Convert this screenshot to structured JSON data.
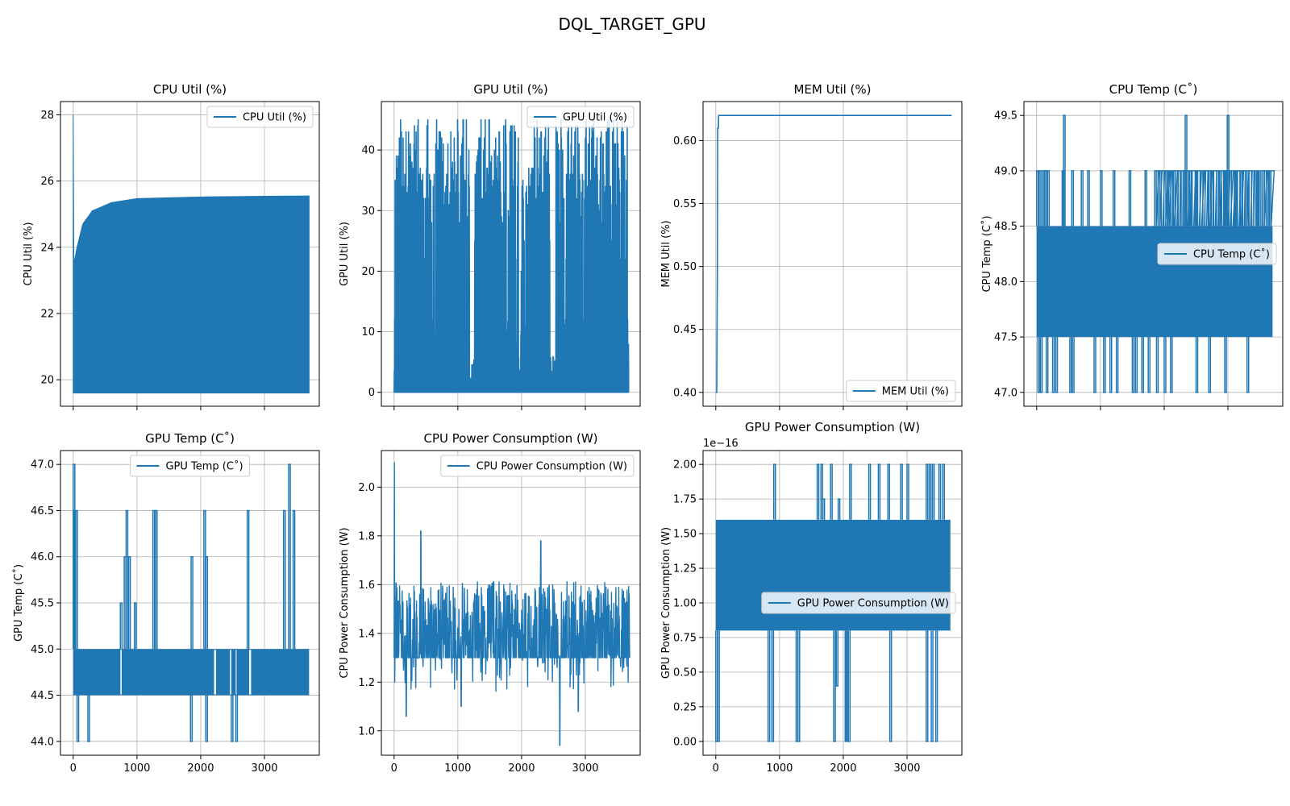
{
  "figure": {
    "suptitle": "DQL_TARGET_GPU"
  },
  "colors": {
    "series": "#1f77b4",
    "grid": "#b0b0b0",
    "axes": "#000000",
    "legend_edge": "#cccccc"
  },
  "chart_data": [
    {
      "type": "line",
      "title": "CPU Util (%)",
      "xlabel": "",
      "ylabel": "CPU Util (%)",
      "legend": "CPU Util (%)",
      "legend_loc": "upper-right",
      "xlim": [
        -200,
        3860
      ],
      "ylim": [
        19.2,
        28.4
      ],
      "xticks": [
        0,
        1000,
        2000,
        3000
      ],
      "xtick_labels_visible": false,
      "yticks": [
        20,
        22,
        24,
        26,
        28
      ],
      "ytick_labels": [
        "20",
        "22",
        "24",
        "26",
        "28"
      ],
      "grid": true,
      "shape": "band",
      "x_end": 3700,
      "low": 19.6,
      "high_points": [
        [
          0,
          28.0
        ],
        [
          10,
          23.5
        ],
        [
          60,
          24.0
        ],
        [
          150,
          24.7
        ],
        [
          300,
          25.1
        ],
        [
          600,
          25.35
        ],
        [
          1000,
          25.47
        ],
        [
          2000,
          25.52
        ],
        [
          3000,
          25.54
        ],
        [
          3700,
          25.55
        ]
      ]
    },
    {
      "type": "line",
      "title": "GPU Util (%)",
      "xlabel": "",
      "ylabel": "GPU Util (%)",
      "legend": "GPU Util (%)",
      "legend_loc": "upper-right",
      "xlim": [
        -200,
        3860
      ],
      "ylim": [
        -2.3,
        48
      ],
      "xticks": [
        0,
        1000,
        2000,
        3000
      ],
      "xtick_labels_visible": false,
      "yticks": [
        0,
        10,
        20,
        30,
        40
      ],
      "ytick_labels": [
        "0",
        "10",
        "20",
        "30",
        "40"
      ],
      "grid": true,
      "shape": "spiky",
      "x_end": 3680,
      "baseline": 0,
      "n": 560,
      "levels": [
        33,
        38,
        36,
        32,
        40,
        28,
        42,
        35,
        20,
        44,
        30,
        37,
        25,
        41,
        33,
        45,
        12,
        34,
        39,
        29,
        43,
        36,
        22,
        31
      ],
      "low_gaps": [
        [
          1180,
          1260
        ],
        [
          2440,
          2520
        ],
        [
          1950,
          1980
        ]
      ]
    },
    {
      "type": "line",
      "title": "MEM Util (%)",
      "xlabel": "",
      "ylabel": "MEM Util (%)",
      "legend": "MEM Util (%)",
      "legend_loc": "lower-right",
      "xlim": [
        -200,
        3860
      ],
      "ylim": [
        0.389,
        0.631
      ],
      "xticks": [
        0,
        1000,
        2000,
        3000
      ],
      "xtick_labels_visible": false,
      "yticks": [
        0.4,
        0.45,
        0.5,
        0.55,
        0.6
      ],
      "ytick_labels": [
        "0.40",
        "0.45",
        "0.50",
        "0.55",
        "0.60"
      ],
      "grid": true,
      "shape": "path",
      "points": [
        [
          0,
          0.4
        ],
        [
          15,
          0.4
        ],
        [
          25,
          0.5
        ],
        [
          30,
          0.61
        ],
        [
          40,
          0.61
        ],
        [
          45,
          0.62
        ],
        [
          3700,
          0.62
        ]
      ]
    },
    {
      "type": "line",
      "title": "CPU Temp (C˚)",
      "xlabel": "",
      "ylabel": "CPU Temp (C˚)",
      "legend": "CPU Temp (C˚)",
      "legend_loc": "center-right",
      "xlim": [
        -200,
        3860
      ],
      "ylim": [
        46.875,
        49.625
      ],
      "xticks": [
        0,
        1000,
        2000,
        3000
      ],
      "xtick_labels_visible": false,
      "yticks": [
        47.0,
        47.5,
        48.0,
        48.5,
        49.0,
        49.5
      ],
      "ytick_labels": [
        "47.0",
        "47.5",
        "48.0",
        "48.5",
        "49.0",
        "49.5"
      ],
      "grid": true,
      "shape": "step-band",
      "x_end": 3700,
      "band": [
        47.5,
        48.5
      ],
      "top_spikes": [
        [
          0,
          49.0
        ],
        [
          40,
          49.0
        ],
        [
          90,
          49.0
        ],
        [
          130,
          49.0
        ],
        [
          170,
          49.0
        ],
        [
          400,
          49.0
        ],
        [
          550,
          49.0
        ],
        [
          700,
          49.0
        ],
        [
          800,
          49.0
        ],
        [
          1000,
          49.0
        ],
        [
          1200,
          49.0
        ],
        [
          1450,
          49.0
        ],
        [
          1700,
          49.0
        ],
        [
          1850,
          49.0
        ],
        [
          1930,
          49.0
        ],
        [
          2050,
          49.0
        ],
        [
          2150,
          49.0
        ],
        [
          2300,
          49.0
        ],
        [
          2400,
          49.0
        ],
        [
          2500,
          49.0
        ],
        [
          2700,
          49.0
        ],
        [
          2850,
          49.0
        ],
        [
          2950,
          49.0
        ],
        [
          3100,
          49.0
        ],
        [
          3200,
          49.0
        ],
        [
          3300,
          49.0
        ],
        [
          3450,
          49.0
        ],
        [
          3550,
          49.0
        ],
        [
          3650,
          49.0
        ],
        [
          420,
          49.5
        ],
        [
          2330,
          49.5
        ],
        [
          2990,
          49.5
        ]
      ],
      "dense_top": [
        [
          1850,
          3700,
          49.0
        ]
      ],
      "bottom_spikes": [
        [
          20,
          47.0
        ],
        [
          60,
          47.0
        ],
        [
          150,
          47.0
        ],
        [
          250,
          47.0
        ],
        [
          300,
          47.0
        ],
        [
          520,
          47.0
        ],
        [
          560,
          47.0
        ],
        [
          900,
          47.0
        ],
        [
          1050,
          47.0
        ],
        [
          1150,
          47.0
        ],
        [
          1250,
          47.0
        ],
        [
          1500,
          47.0
        ],
        [
          1550,
          47.0
        ],
        [
          1650,
          47.0
        ],
        [
          1750,
          47.0
        ],
        [
          1880,
          47.0
        ],
        [
          2000,
          47.0
        ],
        [
          2100,
          47.0
        ],
        [
          2500,
          47.0
        ],
        [
          2700,
          47.0
        ],
        [
          2950,
          47.0
        ],
        [
          3300,
          47.0
        ]
      ]
    },
    {
      "type": "line",
      "title": "GPU Temp (C˚)",
      "xlabel": "",
      "ylabel": "GPU Temp (C˚)",
      "legend": "GPU Temp (C˚)",
      "legend_loc": "upper-center",
      "xlim": [
        -200,
        3860
      ],
      "ylim": [
        43.85,
        47.15
      ],
      "xticks": [
        0,
        1000,
        2000,
        3000
      ],
      "xtick_labels": [
        "0",
        "1000",
        "2000",
        "3000"
      ],
      "yticks": [
        44.0,
        44.5,
        45.0,
        45.5,
        46.0,
        46.5,
        47.0
      ],
      "ytick_labels": [
        "44.0",
        "44.5",
        "45.0",
        "45.5",
        "46.0",
        "46.5",
        "47.0"
      ],
      "grid": true,
      "shape": "step-band",
      "x_end": 3700,
      "band": [
        44.5,
        45.0
      ],
      "top_spikes": [
        [
          0,
          47.0
        ],
        [
          10,
          46.5
        ],
        [
          40,
          46.5
        ],
        [
          740,
          45.5
        ],
        [
          800,
          46.0
        ],
        [
          830,
          46.5
        ],
        [
          870,
          46.0
        ],
        [
          960,
          45.5
        ],
        [
          1250,
          46.5
        ],
        [
          1290,
          46.5
        ],
        [
          1850,
          46.0
        ],
        [
          2050,
          46.5
        ],
        [
          2080,
          46.0
        ],
        [
          2730,
          46.5
        ],
        [
          3300,
          46.5
        ],
        [
          3380,
          47.0
        ],
        [
          3450,
          46.5
        ]
      ],
      "dense_top": [],
      "bottom_spikes": [
        [
          60,
          44.0
        ],
        [
          230,
          44.0
        ],
        [
          1840,
          44.0
        ],
        [
          2080,
          44.0
        ],
        [
          2480,
          44.0
        ],
        [
          2550,
          44.0
        ]
      ],
      "gaps": [
        [
          740,
          760
        ],
        [
          2210,
          2240
        ],
        [
          2460,
          2480
        ],
        [
          2550,
          2560
        ],
        [
          2760,
          2790
        ]
      ]
    },
    {
      "type": "line",
      "title": "CPU Power Consumption (W)",
      "xlabel": "",
      "ylabel": "CPU Power Consumption (W)",
      "legend": "CPU Power Consumption (W)",
      "legend_loc": "upper-right",
      "xlim": [
        -200,
        3860
      ],
      "ylim": [
        0.9,
        2.15
      ],
      "xticks": [
        0,
        1000,
        2000,
        3000
      ],
      "xtick_labels": [
        "0",
        "1000",
        "2000",
        "3000"
      ],
      "yticks": [
        1.0,
        1.2,
        1.4,
        1.6,
        1.8,
        2.0
      ],
      "ytick_labels": [
        "1.0",
        "1.2",
        "1.4",
        "1.6",
        "1.8",
        "2.0"
      ],
      "grid": true,
      "shape": "noisy",
      "x_end": 3700,
      "n": 900,
      "start": [
        [
          0,
          1.3
        ],
        [
          5,
          2.1
        ],
        [
          10,
          1.2
        ],
        [
          20,
          1.55
        ]
      ],
      "center": 1.38,
      "floor": 1.3,
      "spread": 0.12,
      "peaks": [
        [
          420,
          1.82
        ],
        [
          2300,
          1.78
        ]
      ],
      "troughs": [
        [
          190,
          1.06
        ],
        [
          2600,
          0.94
        ],
        [
          1050,
          1.1
        ],
        [
          2890,
          1.08
        ]
      ]
    },
    {
      "type": "line",
      "title": "GPU Power Consumption (W)",
      "xlabel": "",
      "ylabel": "GPU Power Consumption (W)",
      "legend": "GPU Power Consumption (W)",
      "legend_loc": "center-right",
      "axis_offset_label": "1e−16",
      "xlim": [
        -200,
        3860
      ],
      "ylim": [
        -0.1,
        2.1
      ],
      "xticks": [
        0,
        1000,
        2000,
        3000
      ],
      "xtick_labels": [
        "0",
        "1000",
        "2000",
        "3000"
      ],
      "yticks": [
        0.0,
        0.25,
        0.5,
        0.75,
        1.0,
        1.25,
        1.5,
        1.75,
        2.0
      ],
      "ytick_labels": [
        "0.00",
        "0.25",
        "0.50",
        "0.75",
        "1.00",
        "1.25",
        "1.50",
        "1.75",
        "2.00"
      ],
      "grid": true,
      "shape": "step-band",
      "x_end": 3680,
      "band": [
        0.8,
        1.6
      ],
      "mid_level": 1.2,
      "top_spikes": [
        [
          910,
          2.0
        ],
        [
          1590,
          2.0
        ],
        [
          1650,
          2.0
        ],
        [
          1800,
          2.0
        ],
        [
          2100,
          2.0
        ],
        [
          2400,
          2.0
        ],
        [
          2550,
          2.0
        ],
        [
          2700,
          2.0
        ],
        [
          2900,
          2.0
        ],
        [
          3000,
          2.0
        ],
        [
          3300,
          2.0
        ],
        [
          3350,
          2.0
        ],
        [
          3400,
          2.0
        ],
        [
          3500,
          2.0
        ],
        [
          3560,
          2.0
        ],
        [
          1680,
          1.75
        ],
        [
          1920,
          1.75
        ]
      ],
      "dense_top": [],
      "bottom_spikes": [
        [
          0,
          0.0
        ],
        [
          30,
          0.0
        ],
        [
          820,
          0.0
        ],
        [
          880,
          0.0
        ],
        [
          1260,
          0.0
        ],
        [
          1290,
          0.0
        ],
        [
          1850,
          0.0
        ],
        [
          1890,
          0.4
        ],
        [
          2030,
          0.0
        ],
        [
          2050,
          0.0
        ],
        [
          2080,
          0.0
        ],
        [
          2730,
          0.0
        ],
        [
          3300,
          0.0
        ],
        [
          3380,
          0.0
        ],
        [
          3450,
          0.0
        ]
      ],
      "gaps": []
    }
  ]
}
